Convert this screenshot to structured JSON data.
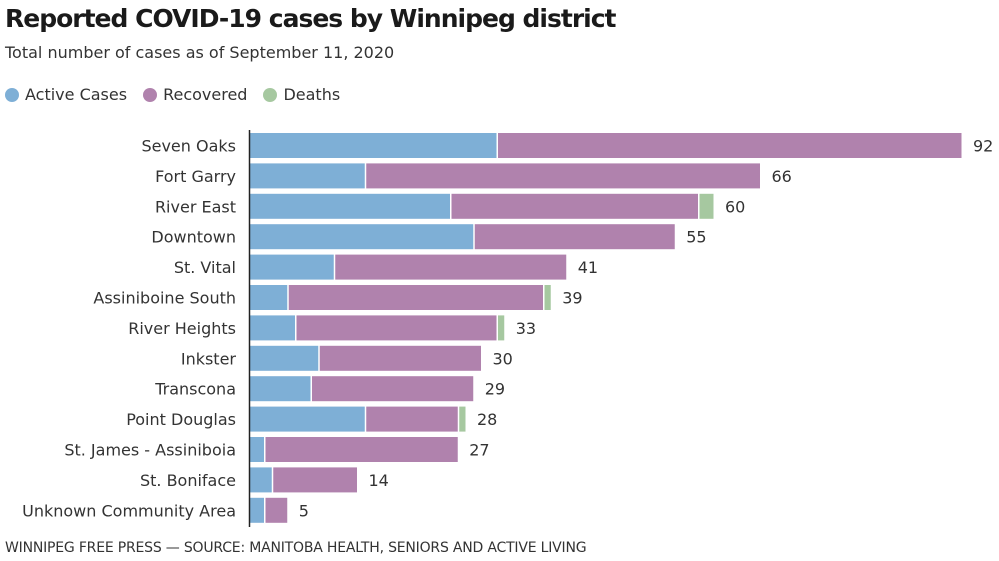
{
  "chart_data": {
    "type": "bar",
    "orientation": "horizontal",
    "stacked": true,
    "title": "Reported COVID-19 cases by Winnipeg district",
    "subtitle": "Total number of cases as of September 11, 2020",
    "xlabel": "",
    "ylabel": "",
    "xlim": [
      0,
      92
    ],
    "grid": false,
    "legend_position": "top-left",
    "categories": [
      "Seven Oaks",
      "Fort Garry",
      "River East",
      "Downtown",
      "St. Vital",
      "Assiniboine South",
      "River Heights",
      "Inkster",
      "Transcona",
      "Point Douglas",
      "St. James - Assiniboia",
      "St. Boniface",
      "Unknown Community Area"
    ],
    "series": [
      {
        "name": "Active Cases",
        "color": "#7eafd6",
        "values": [
          32,
          15,
          26,
          29,
          11,
          5,
          6,
          9,
          8,
          15,
          2,
          3,
          2
        ]
      },
      {
        "name": "Recovered",
        "color": "#b082ad",
        "values": [
          60,
          51,
          32,
          26,
          30,
          33,
          26,
          21,
          21,
          12,
          25,
          11,
          3
        ]
      },
      {
        "name": "Deaths",
        "color": "#a6c8a0",
        "values": [
          0,
          0,
          2,
          0,
          0,
          1,
          1,
          0,
          0,
          1,
          0,
          0,
          0
        ]
      }
    ],
    "totals": [
      92,
      66,
      60,
      55,
      41,
      39,
      33,
      30,
      29,
      28,
      27,
      14,
      5
    ],
    "source": "WINNIPEG FREE PRESS — SOURCE: MANITOBA HEALTH, SENIORS AND ACTIVE LIVING"
  }
}
